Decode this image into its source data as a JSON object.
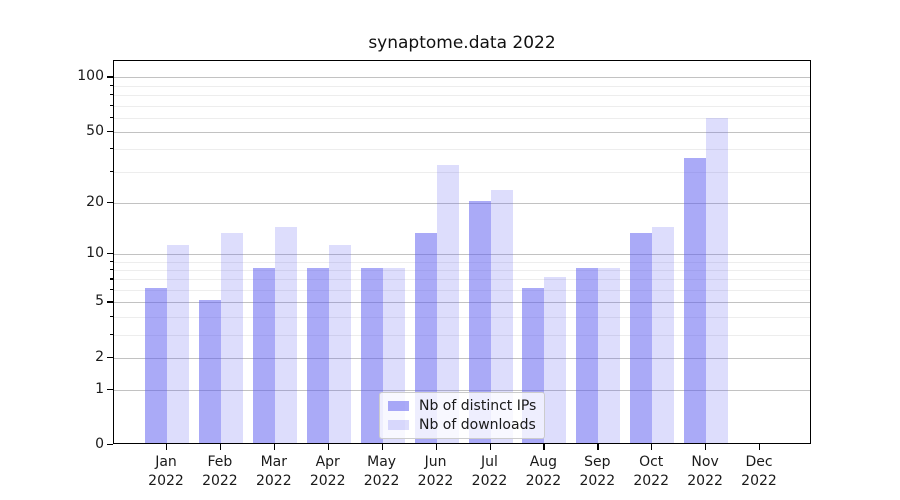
{
  "chart_data": {
    "type": "bar",
    "title": "synaptome.data 2022",
    "months": [
      "Jan",
      "Feb",
      "Mar",
      "Apr",
      "May",
      "Jun",
      "Jul",
      "Aug",
      "Sep",
      "Oct",
      "Nov",
      "Dec"
    ],
    "year": "2022",
    "categories": [
      "Jan 2022",
      "Feb 2022",
      "Mar 2022",
      "Apr 2022",
      "May 2022",
      "Jun 2022",
      "Jul 2022",
      "Aug 2022",
      "Sep 2022",
      "Oct 2022",
      "Nov 2022",
      "Dec 2022"
    ],
    "series": [
      {
        "name": "Nb of distinct IPs",
        "color": "rgba(85,85,240,0.5)",
        "values": [
          6,
          5,
          8,
          8,
          8,
          13,
          20,
          6,
          8,
          13,
          35,
          0
        ]
      },
      {
        "name": "Nb of downloads",
        "color": "rgba(85,85,240,0.2)",
        "values": [
          11,
          13,
          14,
          11,
          8,
          32,
          23,
          7,
          8,
          14,
          58,
          0
        ]
      }
    ],
    "yscale": "log1p",
    "ylim": [
      0,
      123
    ],
    "yticks_major": [
      0,
      1,
      2,
      5,
      10,
      20,
      50,
      100
    ],
    "ytick_labels": [
      "0",
      "1",
      "2",
      "5",
      "10",
      "20",
      "50",
      "100"
    ],
    "yticks_minor": [
      3,
      4,
      6,
      7,
      8,
      9,
      30,
      40,
      60,
      70,
      80,
      90
    ],
    "grid": "on",
    "legend_position": "lower center",
    "xlabel": "",
    "ylabel": ""
  },
  "colors": {
    "bar_ips": "rgba(85,85,240,0.5)",
    "bar_downloads": "rgba(85,85,240,0.2)",
    "grid_major": "#c2c2c2",
    "grid_minor": "#ededed",
    "spine": "#000000",
    "text": "#1a1a1a",
    "legend_border": "#cccccc"
  }
}
